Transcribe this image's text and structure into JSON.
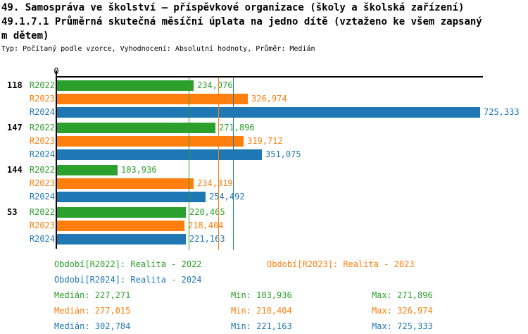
{
  "header": {
    "title_line1": "49. Samospráva ve školství – příspěvkové organizace (školy a školská zařízení)",
    "title_line2": "49.1.7.1 Průměrná skutečná měsíční úplata na jedno dítě (vztaženo ke všem zapsaný",
    "title_line3": "m dětem)",
    "meta": "Typ: Počítaný podle vzorce, Vyhodnocení: Absolutní hodnoty, Průměr: Medián"
  },
  "colors": {
    "R2022": "#2ca02c",
    "R2023": "#ff7f0e",
    "R2024": "#1f77b4",
    "axis": "#000000",
    "background": "#ffffff"
  },
  "chart_data": {
    "type": "bar",
    "orientation": "horizontal",
    "title": "49.1.7.1 Průměrná skutečná měsíční úplata na jedno dítě (vztaženo ke všem zapsaným dětem)",
    "subtitle": "Typ: Počítaný podle vzorce, Vyhodnocení: Absolutní hodnoty, Průměr: Medián",
    "x_axis": {
      "ticks": [
        "0"
      ],
      "origin_tick_label": "0",
      "max_value": 725333,
      "grid": false
    },
    "series": [
      "R2022",
      "R2023",
      "R2024"
    ],
    "legend_position": "bottom",
    "groups": [
      {
        "label": "118",
        "bars": [
          {
            "series": "R2022",
            "value": 234076,
            "label": "234,076"
          },
          {
            "series": "R2023",
            "value": 326974,
            "label": "326,974"
          },
          {
            "series": "R2024",
            "value": 725333,
            "label": "725,333"
          }
        ]
      },
      {
        "label": "147",
        "bars": [
          {
            "series": "R2022",
            "value": 271896,
            "label": "271,896"
          },
          {
            "series": "R2023",
            "value": 319712,
            "label": "319,712"
          },
          {
            "series": "R2024",
            "value": 351075,
            "label": "351,075"
          }
        ]
      },
      {
        "label": "144",
        "bars": [
          {
            "series": "R2022",
            "value": 103936,
            "label": "103,936"
          },
          {
            "series": "R2023",
            "value": 234319,
            "label": "234,319"
          },
          {
            "series": "R2024",
            "value": 254492,
            "label": "254,492"
          }
        ]
      },
      {
        "label": "53",
        "bars": [
          {
            "series": "R2022",
            "value": 220465,
            "label": "220,465"
          },
          {
            "series": "R2023",
            "value": 218404,
            "label": "218,404"
          },
          {
            "series": "R2024",
            "value": 221163,
            "label": "221,163"
          }
        ]
      }
    ],
    "median_lines": [
      {
        "series": "R2022",
        "value": 227271
      },
      {
        "series": "R2023",
        "value": 277015
      },
      {
        "series": "R2024",
        "value": 302784
      }
    ]
  },
  "legend": [
    {
      "series": "R2022",
      "text": "Období[R2022]: Realita - 2022"
    },
    {
      "series": "R2023",
      "text": "Období[R2023]: Realita - 2023"
    },
    {
      "series": "R2024",
      "text": "Období[R2024]: Realita - 2024"
    }
  ],
  "stats": [
    {
      "series": "R2022",
      "median": "Medián: 227,271",
      "min": "Min: 103,936",
      "max": "Max: 271,896"
    },
    {
      "series": "R2023",
      "median": "Medián: 277,015",
      "min": "Min: 218,404",
      "max": "Max: 326,974"
    },
    {
      "series": "R2024",
      "median": "Medián: 302,784",
      "min": "Min: 221,163",
      "max": "Max: 725,333"
    }
  ]
}
